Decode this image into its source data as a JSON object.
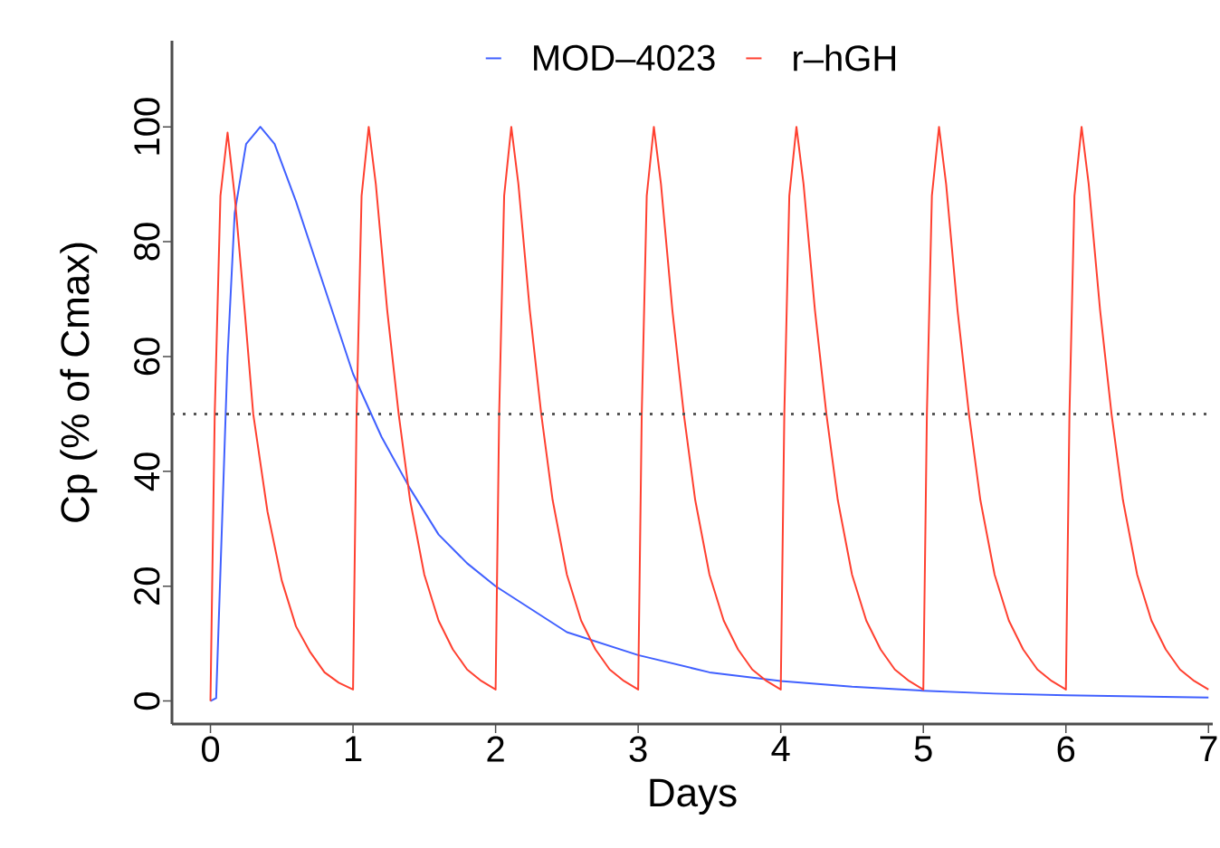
{
  "chart_data": {
    "type": "line",
    "xlabel": "Days",
    "ylabel": "Cp (% of Cmax)",
    "xlim": [
      -0.27,
      7.03
    ],
    "ylim": [
      -4,
      115
    ],
    "xticks": [
      0,
      1,
      2,
      3,
      4,
      5,
      6,
      7
    ],
    "yticks": [
      0,
      20,
      40,
      60,
      80,
      100
    ],
    "grid": false,
    "legend": "top",
    "line_style": "solid",
    "marker": "none",
    "ref_lines": [
      {
        "axis": "y",
        "value": 50,
        "color": "#555555",
        "line_style": "dotted"
      }
    ],
    "series": [
      {
        "name": "MOD–4023",
        "color": "#4060ff",
        "x": [
          0,
          0.04,
          0.08,
          0.12,
          0.17,
          0.25,
          0.35,
          0.45,
          0.6,
          0.8,
          1.0,
          1.2,
          1.4,
          1.6,
          1.8,
          2.0,
          2.5,
          3.0,
          3.5,
          4.0,
          4.5,
          5.0,
          5.5,
          6.0,
          6.5,
          7.0
        ],
        "values": [
          0,
          0.5,
          30,
          60,
          85,
          97,
          100,
          97,
          87,
          72,
          57,
          46,
          37,
          29,
          24,
          20,
          12,
          8,
          5,
          3.5,
          2.5,
          1.8,
          1.3,
          1,
          0.8,
          0.6
        ]
      },
      {
        "name": "r–hGH",
        "color": "#ff4030",
        "x": [
          0,
          0.03,
          0.07,
          0.12,
          0.17,
          0.24,
          0.3,
          0.4,
          0.5,
          0.6,
          0.7,
          0.8,
          0.9,
          1.0,
          1.025,
          1.06,
          1.11,
          1.16,
          1.24,
          1.32,
          1.4,
          1.5,
          1.6,
          1.7,
          1.8,
          1.9,
          2.0,
          2.025,
          2.06,
          2.11,
          2.16,
          2.24,
          2.32,
          2.4,
          2.5,
          2.6,
          2.7,
          2.8,
          2.9,
          3.0,
          3.025,
          3.06,
          3.11,
          3.16,
          3.24,
          3.32,
          3.4,
          3.5,
          3.6,
          3.7,
          3.8,
          3.9,
          4.0,
          4.025,
          4.06,
          4.11,
          4.16,
          4.24,
          4.32,
          4.4,
          4.5,
          4.6,
          4.7,
          4.8,
          4.9,
          5.0,
          5.025,
          5.06,
          5.11,
          5.16,
          5.24,
          5.32,
          5.4,
          5.5,
          5.6,
          5.7,
          5.8,
          5.9,
          6.0,
          6.025,
          6.06,
          6.11,
          6.16,
          6.24,
          6.32,
          6.4,
          6.5,
          6.6,
          6.7,
          6.8,
          6.9,
          7.0
        ],
        "values": [
          0,
          50,
          88,
          99,
          88,
          68,
          50,
          33,
          21,
          13,
          8.5,
          5,
          3.2,
          2,
          50,
          88,
          100,
          90,
          68,
          50,
          35,
          22,
          14,
          9,
          5.5,
          3.5,
          2,
          50,
          88,
          100,
          90,
          68,
          50,
          35,
          22,
          14,
          9,
          5.5,
          3.5,
          2,
          50,
          88,
          100,
          90,
          68,
          50,
          35,
          22,
          14,
          9,
          5.5,
          3.5,
          2,
          50,
          88,
          100,
          90,
          68,
          50,
          35,
          22,
          14,
          9,
          5.5,
          3.5,
          2,
          50,
          88,
          100,
          90,
          68,
          50,
          35,
          22,
          14,
          9,
          5.5,
          3.5,
          2,
          50,
          88,
          100,
          90,
          68,
          50,
          35,
          22,
          14,
          9,
          5.5,
          3.5,
          2
        ]
      }
    ]
  }
}
